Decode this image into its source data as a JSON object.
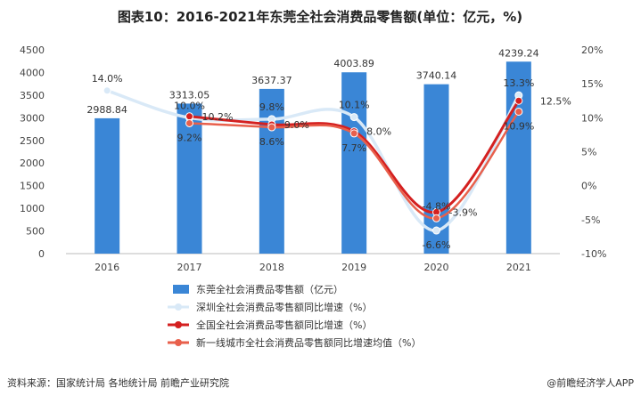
{
  "chart_data": {
    "type": "bar",
    "title": "图表10：2016-2021年东莞全社会消费品零售额(单位：亿元，%)",
    "categories": [
      "2016",
      "2017",
      "2018",
      "2019",
      "2020",
      "2021"
    ],
    "y_left": {
      "ylim": [
        0,
        4500
      ],
      "ticks": [
        "0",
        "500",
        "1000",
        "1500",
        "2000",
        "2500",
        "3000",
        "3500",
        "4000",
        "4500"
      ]
    },
    "y_right": {
      "ylim": [
        -10,
        20
      ],
      "ticks": [
        "-10%",
        "-5%",
        "0%",
        "5%",
        "10%",
        "15%",
        "20%"
      ]
    },
    "bar_series": {
      "name": "东莞全社会消费品零售额（亿元）",
      "color": "#3a86d6",
      "values": [
        2988.84,
        3313.05,
        3637.37,
        4003.89,
        3740.14,
        4239.24
      ],
      "labels": [
        "2988.84",
        "3313.05",
        "3637.37",
        "4003.89",
        "3740.14",
        "4239.24"
      ]
    },
    "line_series": [
      {
        "name": "深圳全社会消费品零售额同比增速（%）",
        "color": "#d9e9f7",
        "values": [
          14.0,
          10.0,
          9.8,
          10.1,
          -6.6,
          13.3
        ],
        "labels": [
          "14.0%",
          "10.0%",
          "9.8%",
          "10.1%",
          "-6.6%",
          "13.3%"
        ]
      },
      {
        "name": "全国全社会消费品零售额同比增速（%）",
        "color": "#d42020",
        "values": [
          null,
          10.2,
          9.0,
          8.0,
          -3.9,
          12.5
        ],
        "labels": [
          "",
          "10.2%",
          "9.0%",
          "8.0%",
          "-3.9%",
          "12.5%"
        ]
      },
      {
        "name": "新一线城市全社会消费品零售额同比增速均值（%）",
        "color": "#e8604c",
        "values": [
          null,
          9.2,
          8.6,
          7.7,
          -4.8,
          10.9
        ],
        "labels": [
          "",
          "9.2%",
          "8.6%",
          "7.7%",
          "-4.8%",
          "10.9%"
        ]
      }
    ]
  },
  "footer": {
    "source": "资料来源：国家统计局 各地统计局 前瞻产业研究院",
    "brand": "@前瞻经济学人APP"
  }
}
